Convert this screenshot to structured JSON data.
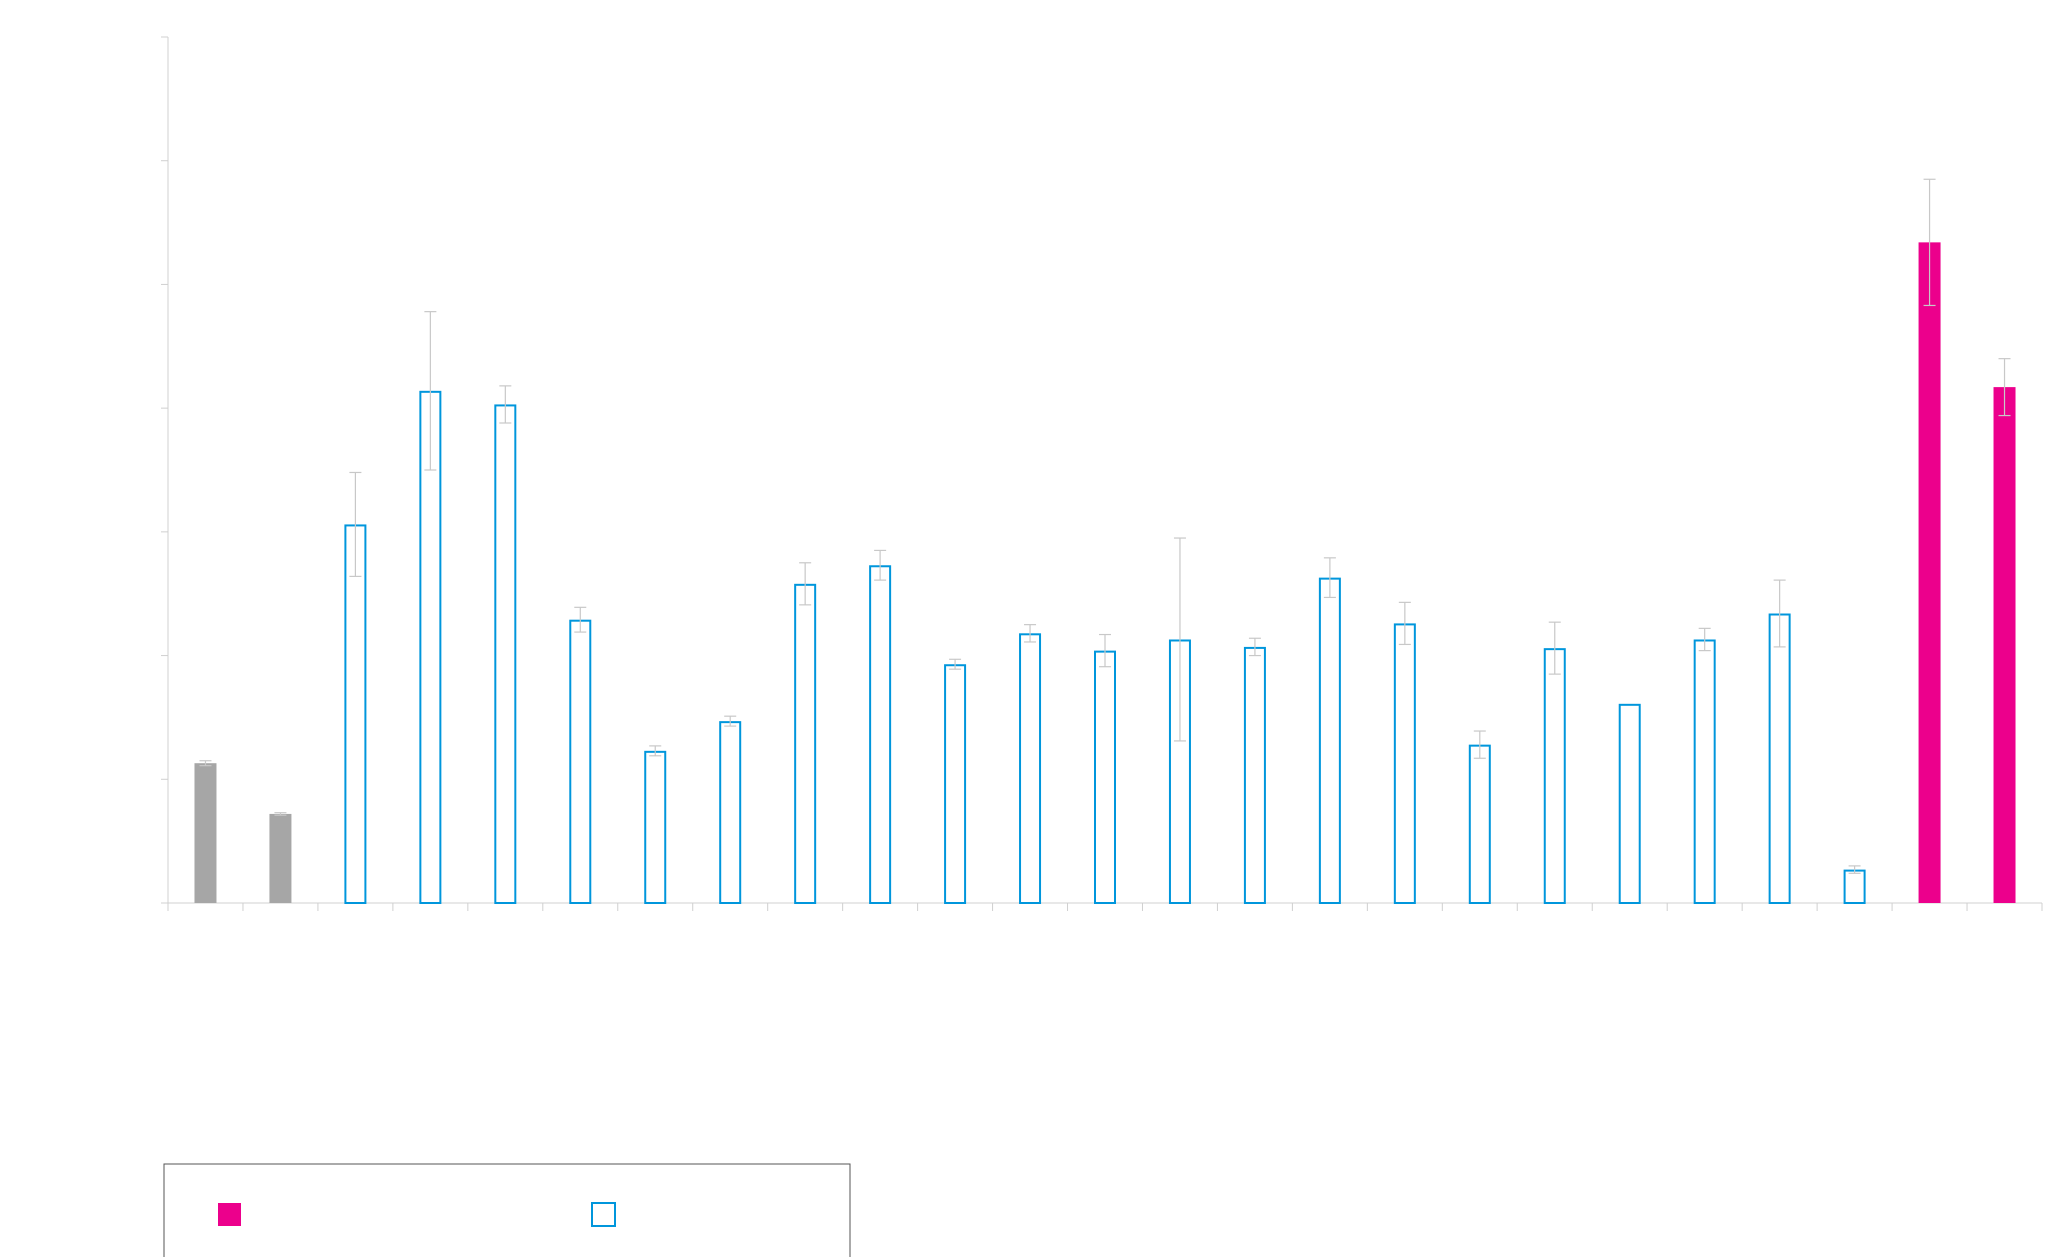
{
  "chart_data": {
    "type": "bar",
    "title": "",
    "xlabel": "",
    "ylabel": "",
    "ylim": [
      0,
      7
    ],
    "grid": false,
    "legend_position": "bottom-left",
    "categories": [
      "",
      "",
      "",
      "",
      "",
      "",
      "",
      "",
      "",
      "",
      "",
      "",
      "",
      "",
      "",
      "",
      "",
      "",
      "",
      "",
      "",
      "",
      "",
      "",
      ""
    ],
    "values": [
      1.13,
      0.72,
      3.06,
      4.14,
      4.03,
      2.29,
      1.23,
      1.47,
      2.58,
      2.73,
      1.93,
      2.18,
      2.04,
      2.13,
      2.07,
      2.63,
      2.26,
      1.28,
      2.06,
      1.61,
      2.13,
      2.34,
      0.27,
      5.34,
      4.17
    ],
    "errors": [
      0.02,
      0.01,
      0.42,
      0.64,
      0.15,
      0.1,
      0.04,
      0.04,
      0.17,
      0.12,
      0.04,
      0.07,
      0.13,
      0.82,
      0.07,
      0.16,
      0.17,
      0.11,
      0.21,
      0.0,
      0.09,
      0.27,
      0.03,
      0.51,
      0.23
    ],
    "styles": [
      "gray",
      "gray",
      "outline",
      "outline",
      "outline",
      "outline",
      "outline",
      "outline",
      "outline",
      "outline",
      "outline",
      "outline",
      "outline",
      "outline",
      "outline",
      "outline",
      "outline",
      "outline",
      "outline",
      "outline",
      "outline",
      "outline",
      "outline",
      "magenta",
      "magenta"
    ],
    "legend": [
      {
        "style": "magenta",
        "label": ""
      },
      {
        "style": "outline",
        "label": ""
      }
    ],
    "colors": {
      "magenta": "#ec008c",
      "blue": "#0096dc",
      "gray": "#a6a6a6",
      "axis": "#d0d0d0",
      "error_bar": "#c8c8c8",
      "legend_border": "#555555"
    }
  }
}
